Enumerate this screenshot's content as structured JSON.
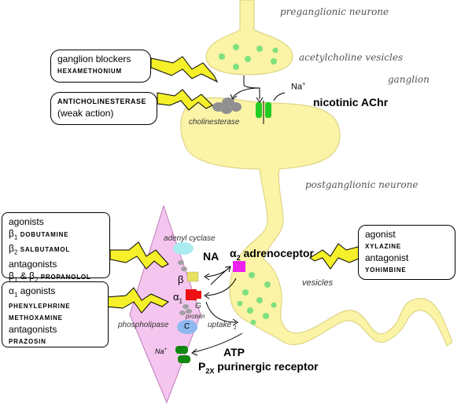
{
  "labels": {
    "preganglionic": "preganglionic neurone",
    "ach_vesicles": "acetylcholine  vesicles",
    "ganglion": "ganglion",
    "na_plus_top": "Na",
    "plus": "+",
    "nicotinic": "nicotinic AChr",
    "cholinesterase": "cholinesterase",
    "postganglionic": "postganglionic neurone",
    "adenyl_cyclase": "adenyl  cyclase",
    "na": "NA",
    "alpha2_prefix": "α",
    "alpha2_sub": "2",
    "adrenoceptor": "adrenoceptor",
    "vesicles": "vesicles",
    "beta": "β",
    "alpha1": "α",
    "alpha1_sub": "1",
    "g": "G",
    "protein": "protein",
    "phospholipase": "phospholipase",
    "c": "C",
    "uptake": "uptake",
    "uptake_sub": "1",
    "na_plus_bottom": "Na",
    "atp": "ATP",
    "p2x": "P",
    "p2x_sub": "2X",
    "purinergic": " purinergic receptor"
  },
  "boxes": {
    "ganglion_blockers": {
      "line1": "ganglion blockers",
      "line2": "HEXAMETHONIUM"
    },
    "anticholinesterase": {
      "line1": "ANTICHOLINESTERASE",
      "line2": "(weak action)"
    },
    "beta_drugs": {
      "agonists": "agonists",
      "b1": "β",
      "b1_sub": "1",
      "b1_drug": "DOBUTAMINE",
      "b2": "β",
      "b2_sub": "2",
      "b2_drug": "SALBUTAMOL",
      "antagonists": "antagonists",
      "b12": "β",
      "b12_sub1": "1",
      "b12_amp": " & β",
      "b12_sub2": "2",
      "b12_drug": "PROPANOLOL"
    },
    "alpha1_drugs": {
      "a1": "α",
      "a1_sub": "1",
      "agonists": " agonists",
      "drug1": "PHENYLEPHRINE",
      "drug2": "METHOXAMINE",
      "antagonists": "antagonists",
      "drug3": "PRAZOSIN"
    },
    "alpha2_drugs": {
      "agonist": "agonist",
      "drug1": "XYLAZINE",
      "antagonist": "antagonist",
      "drug2": "YOHIMBINE"
    }
  },
  "colors": {
    "neurone": "#fbf3a6",
    "neurone_stroke": "#d8cf7a",
    "vesicle": "#7ee07e",
    "lightning": "#f5f02a",
    "membrane": "#f4c6ef",
    "nicotinic": "#22cc22",
    "alpha2_receptor": "#ee22ee",
    "alpha1_receptor": "#ee1111",
    "beta_receptor": "#e8e060",
    "adenyl_cyclase": "#a8ecf0",
    "phospholipase": "#8fb8f0",
    "cholinesterase": "#909090",
    "p2x_receptor": "#118811"
  }
}
